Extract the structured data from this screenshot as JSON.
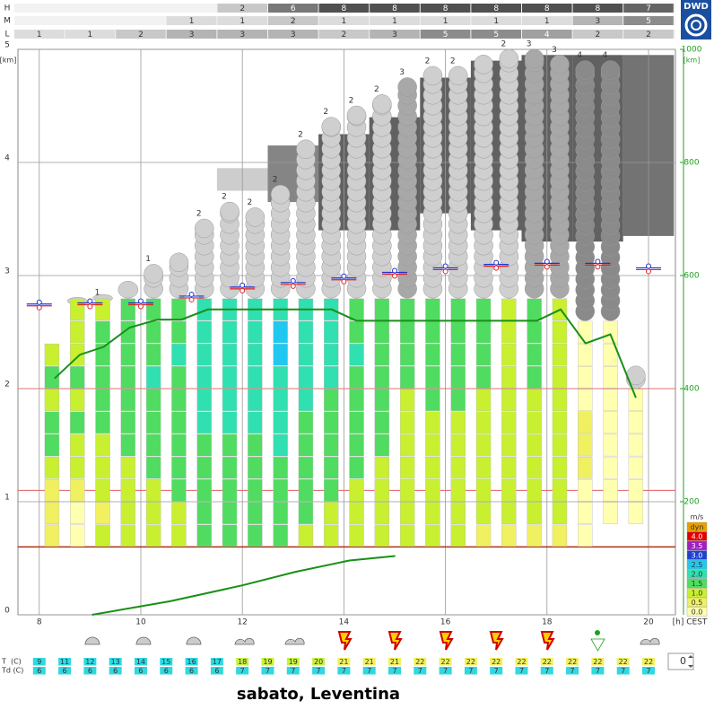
{
  "chart_data": {
    "type": "meteogram",
    "logo": "DWD",
    "title": "sabato, Leventina",
    "x_label": "[h] CEST",
    "y_label": "[km]",
    "y2_label": "[km]",
    "xlim": [
      7.58,
      20.53
    ],
    "xticks": [
      8,
      10,
      12,
      14,
      16,
      18,
      20
    ],
    "ylim": [
      0,
      5
    ],
    "yticks": [
      0,
      1,
      2,
      3,
      4,
      5
    ],
    "y2lim": [
      0,
      1000
    ],
    "y2ticks": [
      200,
      400,
      600,
      800,
      1000
    ],
    "y2color": "#20a020",
    "grid": true,
    "cloud_cover": {
      "rows": [
        {
          "label": "H",
          "x": [
            12,
            13,
            14,
            15,
            16,
            17,
            18,
            19,
            20
          ],
          "values": [
            2,
            6,
            8,
            8,
            8,
            8,
            8,
            8,
            7
          ]
        },
        {
          "label": "M",
          "x": [
            11,
            12,
            13,
            14,
            15,
            16,
            17,
            18,
            19,
            20
          ],
          "values": [
            1,
            1,
            2,
            1,
            1,
            1,
            1,
            1,
            3,
            5
          ]
        },
        {
          "label": "L",
          "x": [
            8,
            9,
            10,
            11,
            12,
            13,
            14,
            15,
            16,
            17,
            18,
            19,
            20
          ],
          "values": [
            1,
            1,
            2,
            3,
            3,
            3,
            2,
            3,
            5,
            5,
            4,
            2,
            2
          ]
        }
      ]
    },
    "upper_cloud": {
      "x": [
        12,
        13,
        14,
        15,
        16,
        17,
        18,
        19,
        20
      ],
      "base": [
        3.75,
        3.65,
        3.4,
        3.4,
        3.55,
        3.4,
        3.3,
        3.3,
        3.35
      ],
      "top": [
        3.95,
        4.15,
        4.25,
        4.4,
        4.75,
        4.9,
        4.95,
        4.95,
        4.95
      ]
    },
    "levels": [
      {
        "value": 0.6,
        "color": "#b03010"
      },
      {
        "value": 1.1,
        "color": "#e06060"
      },
      {
        "value": 2.0,
        "color": "#e07070"
      }
    ],
    "columns": {
      "x": [
        8.25,
        8.75,
        9.25,
        9.75,
        10.25,
        10.75,
        11.25,
        11.75,
        12.25,
        12.75,
        13.25,
        13.75,
        14.25,
        14.75,
        15.25,
        15.75,
        16.25,
        16.75,
        17.25,
        17.75,
        18.25,
        18.75,
        19.25,
        19.75
      ],
      "base": [
        0.6,
        0.6,
        0.6,
        0.6,
        0.6,
        0.6,
        0.6,
        0.6,
        0.6,
        0.6,
        0.6,
        0.6,
        0.6,
        0.6,
        0.6,
        0.6,
        0.6,
        0.6,
        0.6,
        0.6,
        0.6,
        0.6,
        0.8,
        0.8
      ],
      "lift": [
        [
          0.5,
          0.5,
          0.5,
          1.0,
          1.5,
          1.5,
          1.0,
          1.5,
          1.0
        ],
        [
          0.0,
          0.0,
          0.5,
          1.0,
          1.0,
          1.5,
          1.0,
          1.5,
          1.0,
          1.0,
          1.0
        ],
        [
          1.0,
          0.5,
          1.0,
          1.0,
          1.0,
          1.5,
          1.5,
          1.5,
          1.5,
          1.5,
          1.0
        ],
        [
          1.0,
          1.0,
          1.0,
          1.0,
          1.5,
          1.5,
          1.5,
          1.5,
          1.5,
          1.5,
          1.5
        ],
        [
          1.0,
          1.0,
          1.0,
          1.5,
          1.5,
          1.5,
          1.5,
          2.0,
          1.5,
          1.5,
          1.5
        ],
        [
          1.0,
          1.0,
          1.5,
          1.5,
          1.5,
          1.5,
          1.5,
          1.5,
          2.0,
          1.5,
          1.5
        ],
        [
          1.5,
          1.5,
          1.5,
          1.5,
          1.5,
          2.0,
          2.0,
          2.0,
          2.0,
          2.0,
          2.0
        ],
        [
          1.5,
          1.5,
          1.5,
          1.5,
          1.5,
          2.0,
          2.0,
          2.0,
          2.0,
          2.0,
          2.0
        ],
        [
          1.5,
          1.5,
          1.5,
          1.5,
          1.5,
          2.0,
          2.0,
          2.0,
          2.0,
          2.0,
          2.0
        ],
        [
          1.5,
          1.5,
          1.5,
          1.5,
          2.0,
          2.0,
          2.0,
          2.0,
          2.5,
          2.5,
          2.0
        ],
        [
          1.0,
          1.5,
          1.5,
          1.5,
          1.5,
          1.5,
          2.0,
          2.0,
          2.0,
          2.0,
          2.0
        ],
        [
          1.0,
          1.0,
          1.5,
          1.5,
          1.5,
          1.5,
          1.5,
          2.0,
          2.0,
          2.0,
          2.0
        ],
        [
          1.0,
          1.0,
          1.0,
          1.5,
          1.5,
          1.5,
          1.5,
          1.5,
          2.0,
          1.5,
          1.5
        ],
        [
          1.0,
          1.0,
          1.0,
          1.0,
          1.5,
          1.5,
          1.5,
          1.5,
          1.5,
          1.5,
          1.5
        ],
        [
          1.0,
          1.0,
          1.0,
          1.0,
          1.0,
          1.0,
          1.0,
          1.5,
          1.5,
          1.5,
          1.5
        ],
        [
          1.0,
          1.0,
          1.0,
          1.0,
          1.0,
          1.0,
          1.5,
          1.5,
          1.5,
          1.5,
          1.5
        ],
        [
          1.0,
          1.0,
          1.0,
          1.0,
          1.0,
          1.0,
          1.5,
          1.5,
          1.5,
          1.5,
          1.5
        ],
        [
          0.5,
          1.0,
          1.0,
          1.0,
          1.0,
          1.0,
          1.0,
          1.5,
          1.5,
          1.5,
          1.5
        ],
        [
          0.5,
          1.0,
          1.0,
          1.0,
          1.0,
          1.0,
          1.0,
          1.0,
          1.0,
          1.0,
          1.0
        ],
        [
          0.5,
          1.0,
          1.0,
          1.0,
          1.0,
          1.0,
          1.0,
          1.5,
          1.5,
          1.5,
          1.5
        ],
        [
          0.5,
          1.0,
          1.0,
          1.0,
          1.0,
          1.0,
          1.0,
          1.0,
          1.0,
          1.0,
          1.0
        ],
        [
          0.0,
          0.0,
          0.0,
          0.5,
          0.5,
          0.5,
          0.0,
          0.0,
          0.0,
          0.0
        ],
        [
          0.0,
          0.0,
          0.0,
          0.0,
          0.0,
          0.0,
          0.0,
          0.0,
          0.0
        ],
        [
          0.0,
          0.0,
          0.0,
          0.0,
          0.0,
          0.0
        ]
      ],
      "cloud_top": [
        null,
        2.75,
        2.8,
        2.95,
        3.1,
        3.2,
        3.5,
        3.65,
        3.6,
        3.8,
        4.2,
        4.4,
        4.5,
        4.6,
        4.75,
        4.85,
        4.85,
        4.95,
        5.0,
        5.0,
        4.95,
        4.9,
        4.9,
        2.2
      ],
      "cloud_class": [
        null,
        null,
        1,
        null,
        1,
        null,
        2,
        2,
        2,
        2,
        2,
        2,
        2,
        2,
        3,
        2,
        2,
        null,
        2,
        3,
        3,
        4,
        4,
        null
      ]
    },
    "thermal_line": {
      "color": "#189018",
      "x": [
        8.3,
        8.8,
        9.27,
        9.78,
        10.33,
        10.8,
        11.32,
        13.76,
        14.25,
        17.8,
        18.27,
        18.76,
        19.25,
        19.75
      ],
      "values": [
        2.09,
        2.3,
        2.37,
        2.54,
        2.61,
        2.61,
        2.7,
        2.7,
        2.6,
        2.6,
        2.7,
        2.4,
        2.48,
        1.92
      ]
    },
    "boundary_line": {
      "color": "#189018",
      "x": [
        9.04,
        10.58,
        12.0,
        13.05,
        14.11,
        15.01
      ],
      "values": [
        0,
        0.12,
        0.26,
        0.38,
        0.48,
        0.52
      ]
    },
    "condensation": {
      "x": [
        8,
        9,
        10,
        11,
        12,
        13,
        14,
        15,
        16,
        17,
        18,
        19,
        20
      ],
      "values": [
        2.74,
        2.75,
        2.75,
        2.81,
        2.89,
        2.93,
        2.97,
        3.02,
        3.06,
        3.09,
        3.1,
        3.1,
        3.06
      ]
    },
    "legend": {
      "title": "m/s",
      "entries": [
        {
          "label": "dyn",
          "color": "#e8a000"
        },
        {
          "value": 4,
          "label": "4.0",
          "color": "#e00000"
        },
        {
          "value": 3.5,
          "label": "3.5",
          "color": "#a020c0"
        },
        {
          "value": 3,
          "label": "3.0",
          "color": "#2040d0"
        },
        {
          "value": 2.5,
          "label": "2.5",
          "color": "#20c8f0"
        },
        {
          "value": 2,
          "label": "2.0",
          "color": "#30e0b0"
        },
        {
          "value": 1.5,
          "label": "1.5",
          "color": "#50dc60"
        },
        {
          "value": 1,
          "label": "1.0",
          "color": "#c8f030"
        },
        {
          "value": 0.5,
          "label": "0.5",
          "color": "#f0f060"
        },
        {
          "value": 0,
          "label": "0.0",
          "color": "#ffffb0"
        }
      ]
    },
    "temperature": {
      "x": [
        8,
        8.5,
        9,
        9.5,
        10,
        10.5,
        11,
        11.5,
        12,
        12.5,
        13,
        13.5,
        14,
        14.5,
        15,
        15.5,
        16,
        16.5,
        17,
        17.5,
        18,
        18.5,
        19,
        19.5,
        20
      ],
      "rows": [
        {
          "label": "T  (C)",
          "values": [
            9,
            11,
            12,
            13,
            14,
            15,
            16,
            17,
            18,
            19,
            19,
            20,
            21,
            21,
            21,
            22,
            22,
            22,
            22,
            22,
            22,
            22,
            22,
            22,
            22
          ]
        },
        {
          "label": "Td (C)",
          "values": [
            6,
            6,
            6,
            6,
            6,
            6,
            6,
            6,
            7,
            7,
            7,
            7,
            7,
            7,
            7,
            7,
            7,
            7,
            7,
            7,
            7,
            7,
            7,
            7,
            7
          ]
        }
      ]
    },
    "offset": 0
  }
}
